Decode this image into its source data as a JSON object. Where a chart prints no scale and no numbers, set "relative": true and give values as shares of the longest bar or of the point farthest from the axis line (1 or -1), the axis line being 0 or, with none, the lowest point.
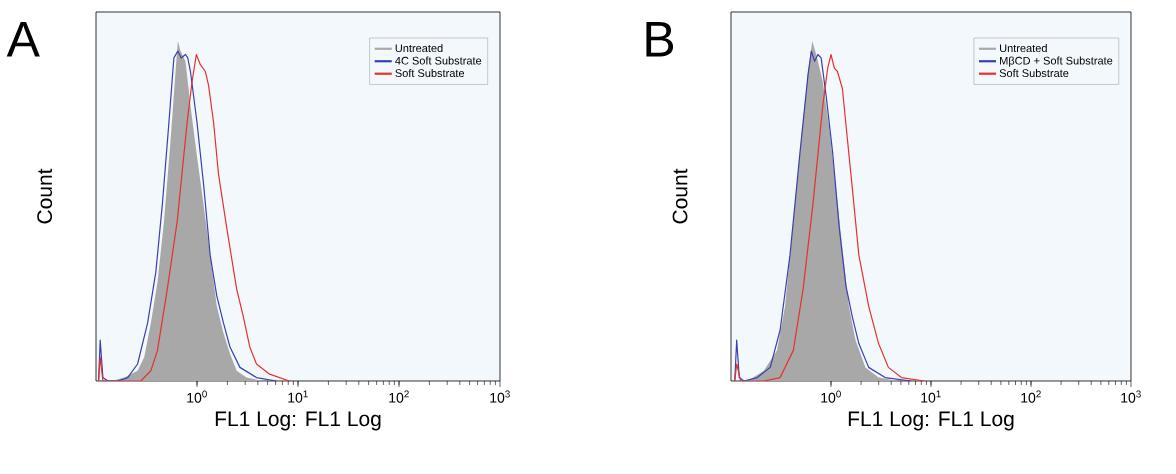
{
  "chart_data": [
    {
      "type": "line",
      "title": "A",
      "xlabel": "FL1 Log: FL1 Log",
      "ylabel": "Count",
      "relative": true,
      "log": "x",
      "legend": "top right",
      "tick_labels": "x",
      "xlim": [
        0.1,
        1000
      ],
      "xticks": [
        {
          "value": 1,
          "label": "10$^{0}$"
        },
        {
          "value": 10,
          "label": "10$^{1}$"
        },
        {
          "value": 100,
          "label": "10$^{2}$"
        },
        {
          "value": 1000,
          "label": "10$^{3}$"
        }
      ],
      "series": [
        {
          "name": "Untreated",
          "type": "area",
          "color": "#a8a8a8",
          "x": [
            0.141,
            0.191,
            0.258,
            0.3,
            0.349,
            0.406,
            0.471,
            0.548,
            0.613,
            0.646,
            0.687,
            0.769,
            0.861,
            1,
            1.16,
            1.35,
            1.57,
            1.83,
            2.12,
            2.47,
            3.09,
            4.51,
            8.22
          ],
          "values": [
            0,
            0.01,
            0.03,
            0.07,
            0.17,
            0.29,
            0.47,
            0.71,
            0.91,
            1,
            0.97,
            0.94,
            0.81,
            0.66,
            0.52,
            0.37,
            0.22,
            0.14,
            0.08,
            0.03,
            0.01,
            0,
            0
          ]
        },
        {
          "name": "4C Soft Substrate",
          "color": "#3a3fb0",
          "x": [
            0.106,
            0.11,
            0.117,
            0.131,
            0.164,
            0.206,
            0.258,
            0.324,
            0.391,
            0.454,
            0.527,
            0.59,
            0.646,
            0.697,
            0.769,
            0.81,
            0.861,
            1,
            1.16,
            1.35,
            1.57,
            1.83,
            2.12,
            2.66,
            3.88,
            6.09
          ],
          "values": [
            0,
            0.12,
            0.01,
            0,
            0,
            0.01,
            0.05,
            0.17,
            0.32,
            0.52,
            0.76,
            0.95,
            0.97,
            0.95,
            0.96,
            0.95,
            0.91,
            0.76,
            0.58,
            0.37,
            0.25,
            0.17,
            0.1,
            0.04,
            0.01,
            0
          ]
        },
        {
          "name": "Soft Substrate",
          "color": "#e8302a",
          "x": [
            0.106,
            0.11,
            0.117,
            0.278,
            0.349,
            0.406,
            0.508,
            0.637,
            0.798,
            0.893,
            0.985,
            1.08,
            1.21,
            1.3,
            1.46,
            1.63,
            1.97,
            2.47,
            2.87,
            3.33,
            3.88,
            5.23,
            8.22
          ],
          "values": [
            0,
            0.07,
            0,
            0,
            0.03,
            0.09,
            0.27,
            0.47,
            0.76,
            0.88,
            0.96,
            0.93,
            0.91,
            0.87,
            0.76,
            0.61,
            0.45,
            0.27,
            0.19,
            0.1,
            0.05,
            0.02,
            0
          ]
        }
      ]
    },
    {
      "type": "line",
      "title": "B",
      "xlabel": "FL1 Log: FL1 Log",
      "ylabel": "Count",
      "relative": true,
      "log": "x",
      "legend": "top right",
      "tick_labels": "x",
      "xlim": [
        0.1,
        1000
      ],
      "xticks": [
        {
          "value": 1,
          "label": "10$^{0}$"
        },
        {
          "value": 10,
          "label": "10$^{1}$"
        },
        {
          "value": 100,
          "label": "10$^{2}$"
        },
        {
          "value": 1000,
          "label": "10$^{3}$"
        }
      ],
      "series": [
        {
          "name": "Untreated",
          "type": "area",
          "color": "#a8a8a8",
          "x": [
            0.146,
            0.213,
            0.288,
            0.347,
            0.42,
            0.507,
            0.589,
            0.65,
            0.712,
            0.828,
            0.963,
            1.12,
            1.3,
            1.51,
            1.76,
            2.21,
            2.99,
            4.7
          ],
          "values": [
            0,
            0.03,
            0.09,
            0.22,
            0.47,
            0.72,
            0.91,
            1,
            0.96,
            0.88,
            0.74,
            0.57,
            0.39,
            0.22,
            0.12,
            0.04,
            0.01,
            0
          ]
        },
        {
          "name": "MβCD + Soft Substrate",
          "color": "#3a3fb0",
          "x": [
            0.109,
            0.114,
            0.121,
            0.135,
            0.183,
            0.247,
            0.31,
            0.389,
            0.489,
            0.589,
            0.636,
            0.686,
            0.739,
            0.797,
            0.893,
            1.04,
            1.21,
            1.41,
            1.63,
            1.9,
            2.38,
            3.48,
            6.36
          ],
          "values": [
            0,
            0.12,
            0.01,
            0,
            0.01,
            0.04,
            0.15,
            0.37,
            0.67,
            0.9,
            0.97,
            0.94,
            0.96,
            0.95,
            0.84,
            0.67,
            0.45,
            0.28,
            0.19,
            0.11,
            0.04,
            0.01,
            0
          ]
        },
        {
          "name": "Soft Substrate",
          "color": "#e8302a",
          "x": [
            0.109,
            0.114,
            0.125,
            0.213,
            0.31,
            0.42,
            0.526,
            0.66,
            0.828,
            0.927,
            1,
            1.08,
            1.16,
            1.3,
            1.46,
            1.63,
            1.9,
            2.38,
            2.99,
            3.75,
            5.07,
            8.6
          ],
          "values": [
            0,
            0.05,
            0,
            0,
            0.01,
            0.09,
            0.27,
            0.52,
            0.81,
            0.92,
            0.96,
            0.92,
            0.91,
            0.86,
            0.71,
            0.57,
            0.37,
            0.22,
            0.11,
            0.04,
            0.01,
            0
          ]
        }
      ]
    }
  ]
}
